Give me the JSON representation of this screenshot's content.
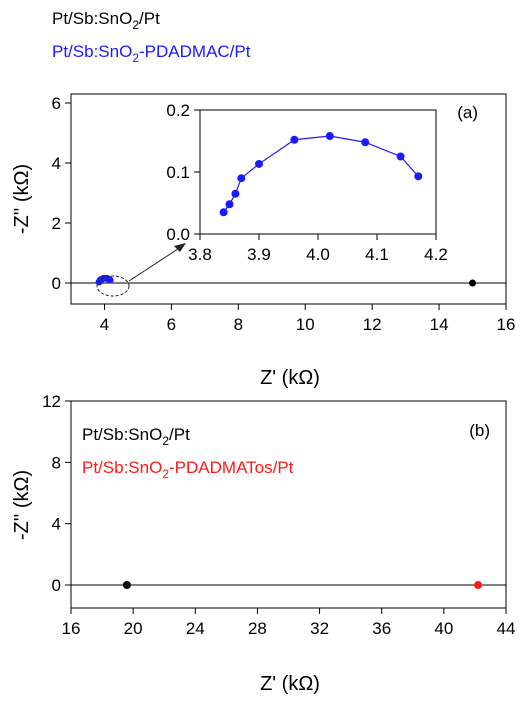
{
  "chart_data": [
    {
      "panel_label": "(a)",
      "type": "scatter",
      "xlabel": "Z' (kΩ)",
      "ylabel": "-Z'' (kΩ)",
      "xlim": [
        3,
        16
      ],
      "ylim": [
        -0.7,
        6.3
      ],
      "xticks": [
        4,
        6,
        8,
        10,
        12,
        14,
        16
      ],
      "yticks": [
        0,
        2,
        4,
        6
      ],
      "baseline_y": 0,
      "legend_placement": "top-left",
      "series": [
        {
          "name": "Pt/Sb:SnO2/Pt",
          "name_parts": [
            "Pt/Sb:SnO",
            "2",
            "/Pt"
          ],
          "color": "#000000",
          "x": [
            15.0
          ],
          "y": [
            0.0
          ]
        },
        {
          "name": "Pt/Sb:SnO2-PDADMAC/Pt",
          "name_parts": [
            "Pt/Sb:SnO",
            "2",
            "-PDADMAC/Pt"
          ],
          "color": "#1a1aff",
          "x": [
            3.84,
            3.85,
            3.86,
            3.87,
            3.9,
            3.96,
            4.02,
            4.08,
            4.14,
            4.17
          ],
          "y": [
            0.035,
            0.048,
            0.065,
            0.09,
            0.113,
            0.152,
            0.158,
            0.148,
            0.125,
            0.093
          ]
        }
      ],
      "inset": {
        "type": "line",
        "xlim": [
          3.8,
          4.2
        ],
        "ylim": [
          0.0,
          0.2
        ],
        "xticks": [
          3.8,
          3.9,
          4.0,
          4.1,
          4.2
        ],
        "xtick_labels": [
          "3.8",
          "3.9",
          "4.0",
          "4.1",
          "4.2"
        ],
        "yticks": [
          0.0,
          0.1,
          0.2
        ],
        "ytick_labels": [
          "0.0",
          "0.1",
          "0.2"
        ],
        "color": "#1a1aff",
        "x": [
          3.84,
          3.85,
          3.86,
          3.87,
          3.9,
          3.96,
          4.02,
          4.08,
          4.14,
          4.17
        ],
        "y": [
          0.035,
          0.048,
          0.065,
          0.09,
          0.113,
          0.152,
          0.158,
          0.148,
          0.125,
          0.093
        ]
      }
    },
    {
      "panel_label": "(b)",
      "type": "scatter",
      "xlabel": "Z' (kΩ)",
      "ylabel": "-Z'' (kΩ)",
      "xlim": [
        16,
        44
      ],
      "ylim": [
        -1.5,
        12
      ],
      "xticks": [
        16,
        20,
        24,
        28,
        32,
        36,
        40,
        44
      ],
      "yticks": [
        0,
        4,
        8,
        12
      ],
      "baseline_y": 0,
      "legend_placement": "top-left",
      "series": [
        {
          "name": "Pt/Sb:SnO2/Pt",
          "name_parts": [
            "Pt/Sb:SnO",
            "2",
            "/Pt"
          ],
          "color": "#000000",
          "x": [
            19.6
          ],
          "y": [
            0.0
          ]
        },
        {
          "name": "Pt/Sb:SnO2-PDADMATos/Pt",
          "name_parts": [
            "Pt/Sb:SnO",
            "2",
            "-PDADMATos/Pt"
          ],
          "color": "#ff1a1a",
          "x": [
            42.2
          ],
          "y": [
            0.0
          ]
        }
      ]
    }
  ]
}
